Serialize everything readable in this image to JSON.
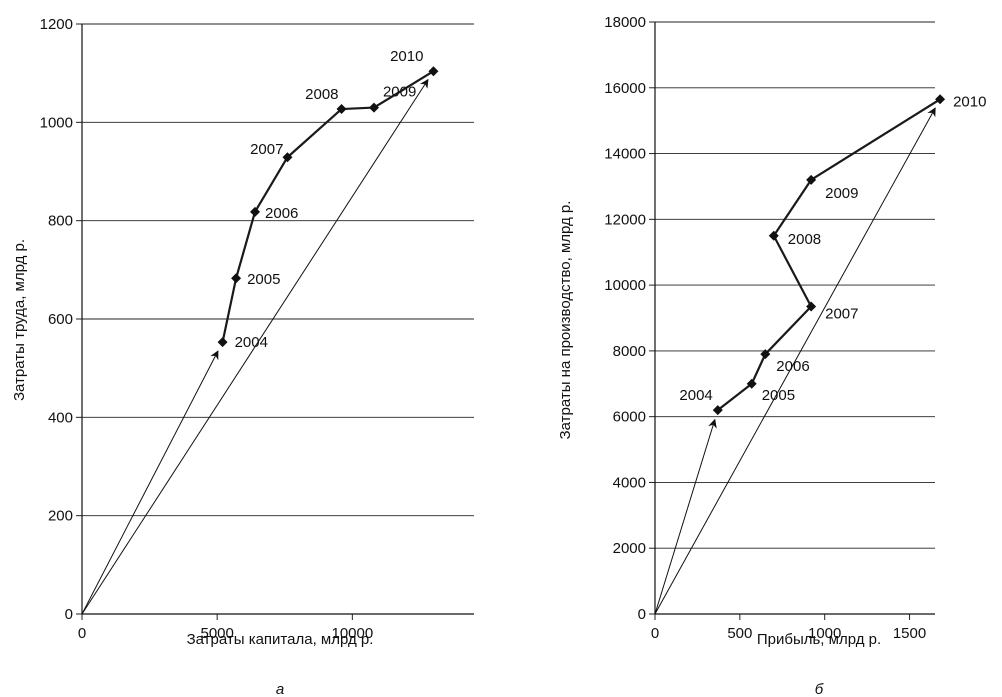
{
  "chart_data": [
    {
      "type": "line",
      "panel_label": "а",
      "title": "",
      "xlabel": "Затраты капитала, млрд р.",
      "ylabel": "Затраты труда, млрд р.",
      "xlim": [
        0,
        14500
      ],
      "ylim": [
        0,
        1200
      ],
      "xticks": [
        "0",
        "5000",
        "10000"
      ],
      "yticks": [
        "0",
        "200",
        "400",
        "600",
        "800",
        "1000",
        "1200"
      ],
      "grid": "horizontal",
      "line_color": "#1a1a1a",
      "points": [
        {
          "year": "2004",
          "x": 5200,
          "y": 553
        },
        {
          "year": "2005",
          "x": 5700,
          "y": 683
        },
        {
          "year": "2006",
          "x": 6400,
          "y": 818
        },
        {
          "year": "2007",
          "x": 7600,
          "y": 929
        },
        {
          "year": "2008",
          "x": 9600,
          "y": 1027
        },
        {
          "year": "2009",
          "x": 10800,
          "y": 1030
        },
        {
          "year": "2010",
          "x": 13000,
          "y": 1104
        }
      ],
      "vectors_from_origin": [
        "2004",
        "2010"
      ]
    },
    {
      "type": "line",
      "panel_label": "б",
      "title": "",
      "xlabel": "Прибыль, млрд р.",
      "ylabel": "Затраты на производство, млрд р.",
      "xlim": [
        0,
        1650
      ],
      "ylim": [
        0,
        18000
      ],
      "xticks": [
        "0",
        "500",
        "1000",
        "1500"
      ],
      "yticks": [
        "0",
        "2000",
        "4000",
        "6000",
        "8000",
        "10000",
        "12000",
        "14000",
        "16000",
        "18000"
      ],
      "grid": "horizontal",
      "line_color": "#1a1a1a",
      "points": [
        {
          "year": "2004",
          "x": 370,
          "y": 6200
        },
        {
          "year": "2005",
          "x": 570,
          "y": 7000
        },
        {
          "year": "2006",
          "x": 650,
          "y": 7900
        },
        {
          "year": "2007",
          "x": 920,
          "y": 9350
        },
        {
          "year": "2008",
          "x": 700,
          "y": 11500
        },
        {
          "year": "2009",
          "x": 920,
          "y": 13200
        },
        {
          "year": "2010",
          "x": 1680,
          "y": 15650
        }
      ],
      "vectors_from_origin": [
        "2004",
        "2010"
      ]
    }
  ]
}
